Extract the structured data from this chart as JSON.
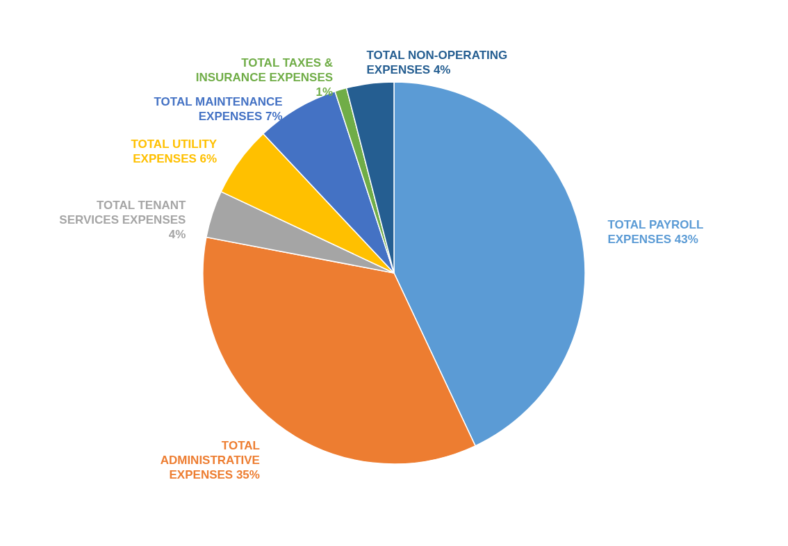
{
  "chart_data": {
    "type": "pie",
    "categories": [
      "TOTAL PAYROLL EXPENSES",
      "TOTAL ADMINISTRATIVE EXPENSES",
      "TOTAL TENANT SERVICES EXPENSES",
      "TOTAL UTILITY EXPENSES",
      "TOTAL MAINTENANCE EXPENSES",
      "TOTAL TAXES & INSURANCE EXPENSES",
      "TOTAL NON-OPERATING EXPENSES"
    ],
    "values": [
      43,
      35,
      4,
      6,
      7,
      1,
      4
    ],
    "value_labels": [
      "43%",
      "35%",
      "4%",
      "6%",
      "7%",
      "1%",
      "4%"
    ],
    "colors": [
      "#5b9bd5",
      "#ed7d31",
      "#a5a5a5",
      "#ffc000",
      "#4472c4",
      "#70ad47",
      "#255e91"
    ]
  }
}
